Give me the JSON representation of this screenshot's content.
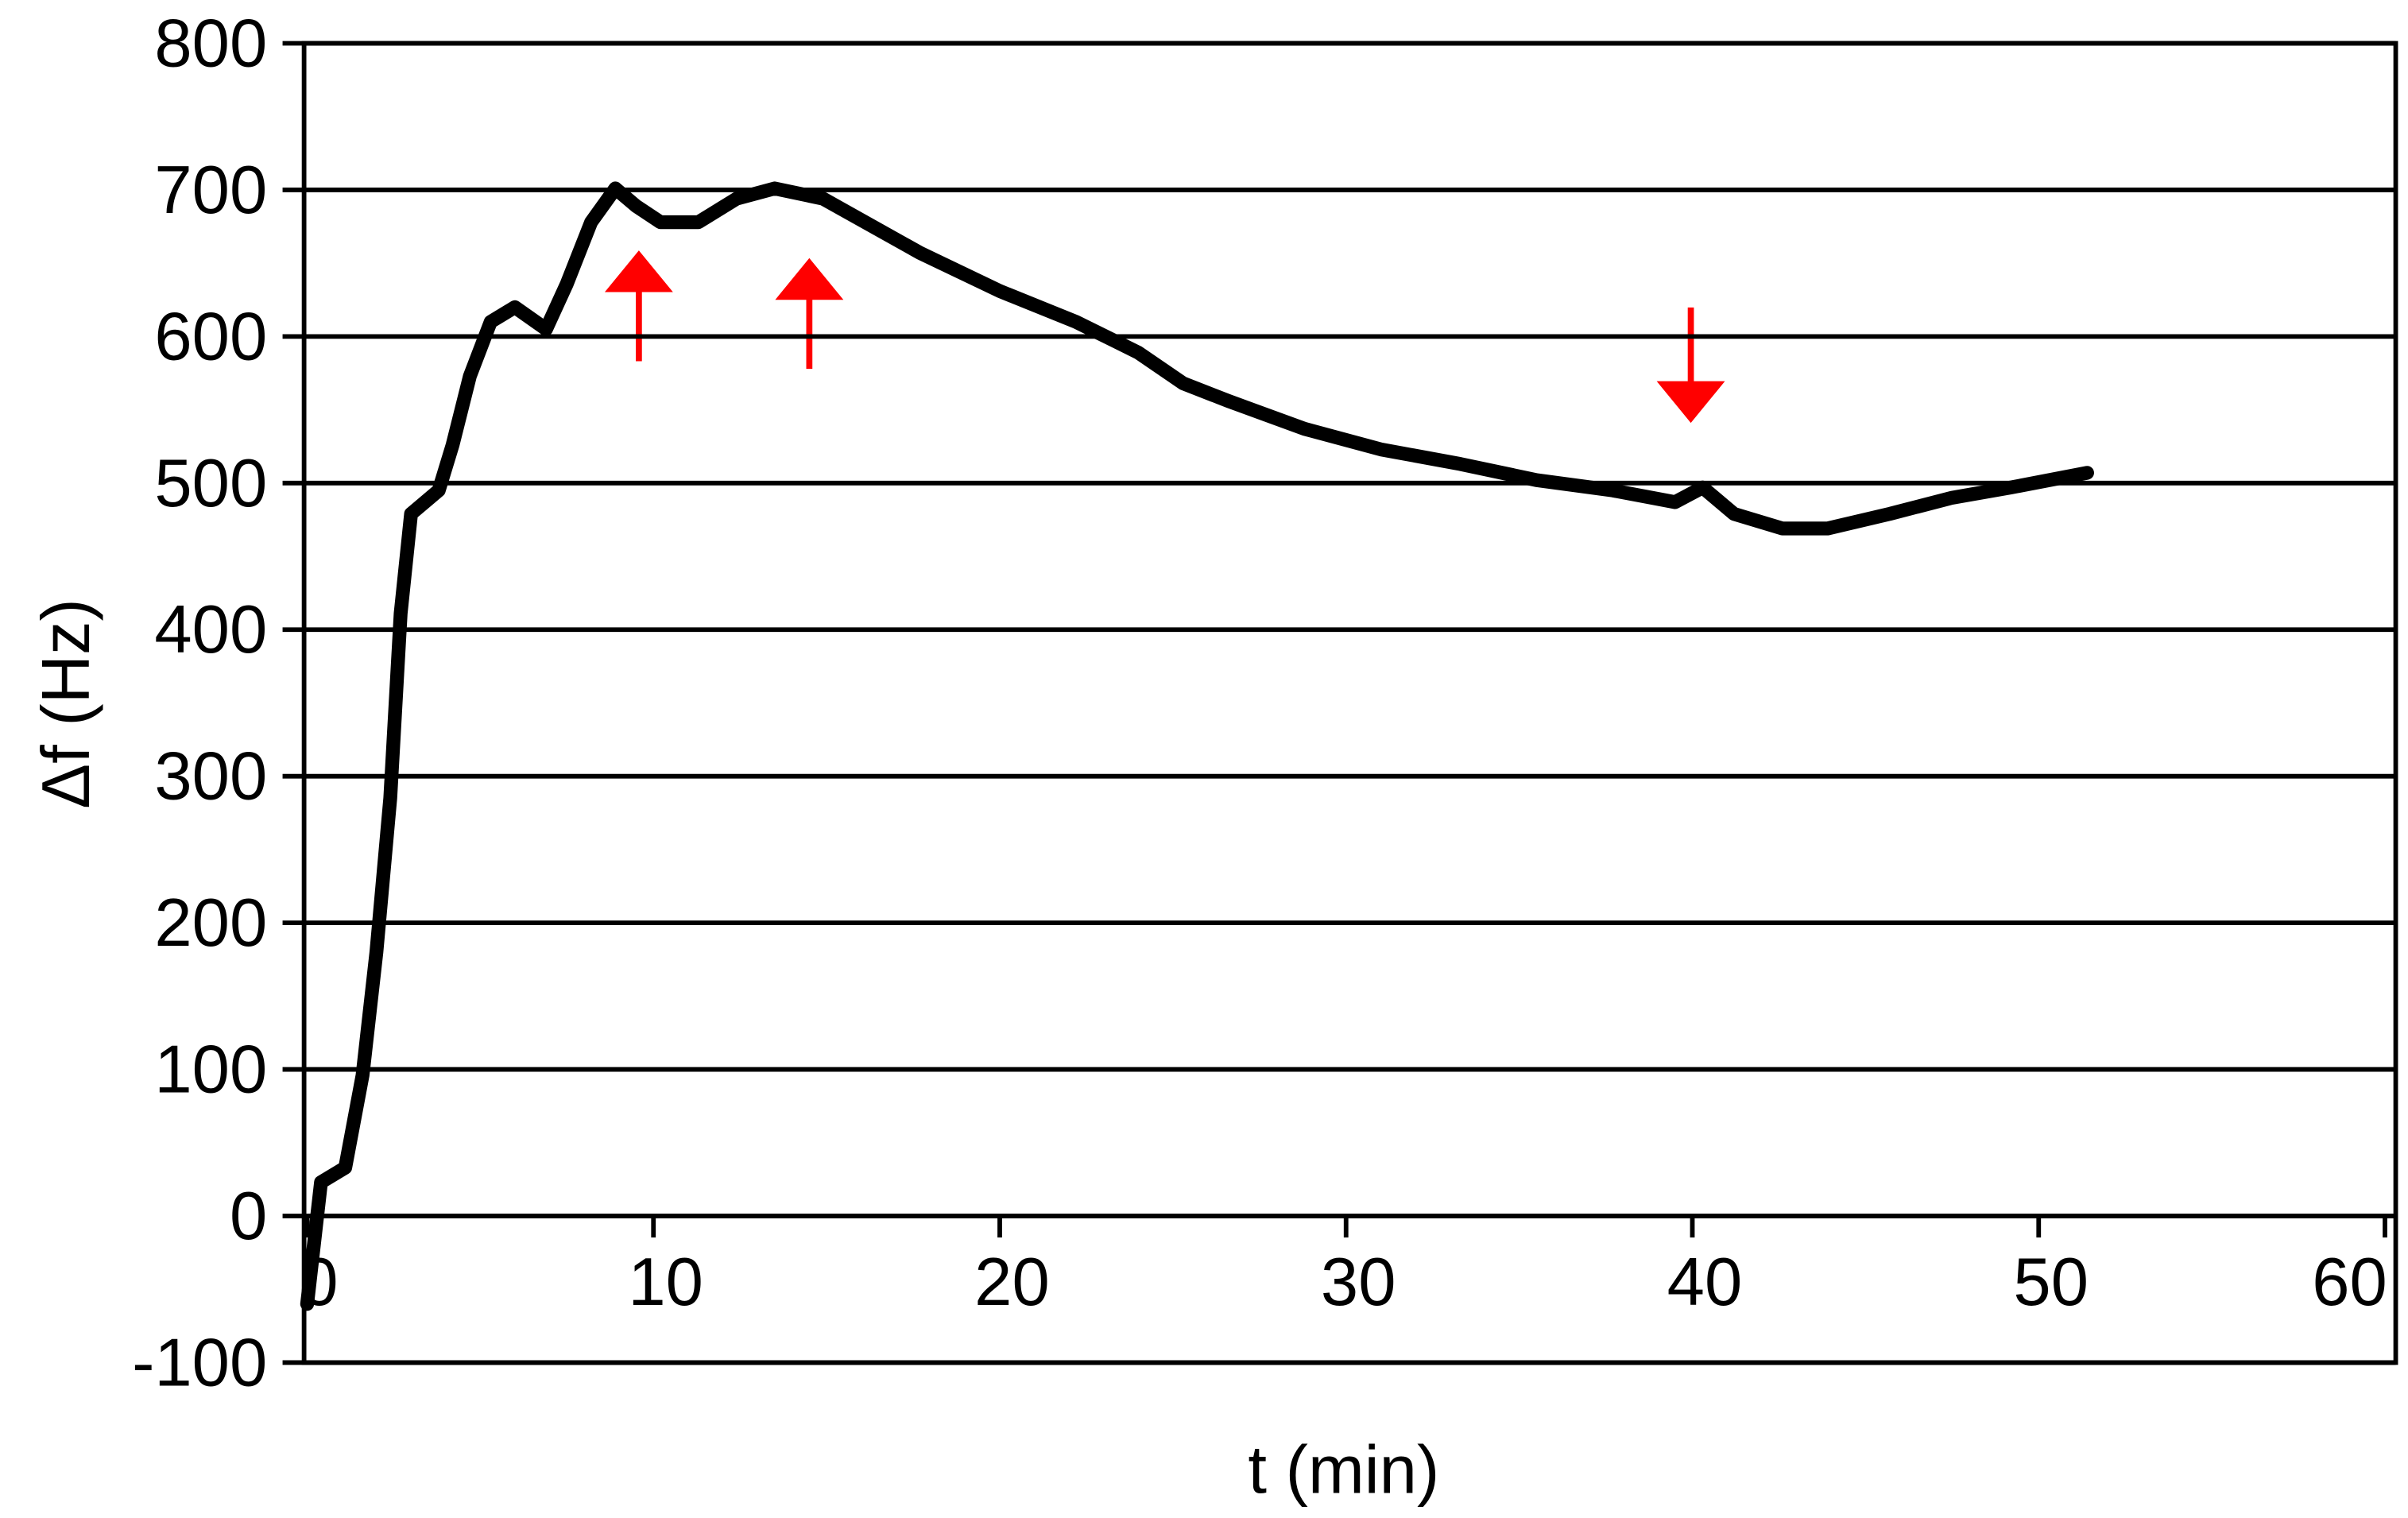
{
  "chart_data": {
    "type": "line",
    "x_label": "t (min)",
    "y_label": "Δf (Hz)",
    "x": [
      0,
      0.4,
      1.1,
      1.6,
      2,
      2.4,
      2.7,
      3,
      3.8,
      4.2,
      4.7,
      5.3,
      6,
      6.9,
      7.5,
      8.2,
      8.9,
      9.5,
      10.2,
      11.3,
      12.4,
      13.5,
      14.9,
      17.7,
      20,
      22.2,
      24,
      25.3,
      26.6,
      28.8,
      31,
      33.3,
      35.5,
      37.7,
      39.5,
      40.3,
      41.2,
      42.6,
      43.9,
      45.7,
      47.5,
      49.2,
      51.4
    ],
    "series": [
      {
        "color": "#000000",
        "values": [
          -60,
          23,
          33,
          96,
          180,
          285,
          411,
          479,
          495,
          526,
          573,
          610,
          620,
          605,
          636,
          678,
          701,
          689,
          678,
          678,
          694,
          701,
          694,
          657,
          631,
          610,
          589,
          568,
          556,
          537,
          523,
          513,
          502,
          495,
          487,
          497,
          479,
          469,
          469,
          479,
          490,
          497,
          507
        ]
      }
    ],
    "xlim": [
      0,
      60
    ],
    "xticks": [
      0,
      10,
      20,
      30,
      40,
      50,
      60
    ],
    "ylim": [
      -100,
      800
    ],
    "yticks": [
      -100,
      0,
      100,
      200,
      300,
      400,
      500,
      600,
      700,
      800
    ],
    "grid": true
  }
}
